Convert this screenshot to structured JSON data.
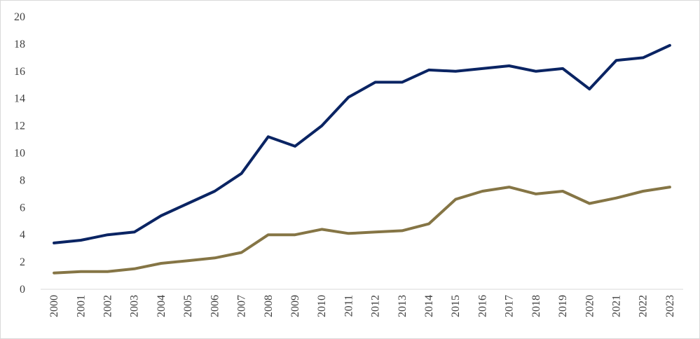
{
  "chart_data": {
    "type": "line",
    "title": "",
    "xlabel": "",
    "ylabel": "",
    "categories": [
      "2000",
      "2001",
      "2002",
      "2003",
      "2004",
      "2005",
      "2006",
      "2007",
      "2008",
      "2009",
      "2010",
      "2011",
      "2012",
      "2013",
      "2014",
      "2015",
      "2016",
      "2017",
      "2018",
      "2019",
      "2020",
      "2021",
      "2022",
      "2023"
    ],
    "ylim": [
      0,
      20
    ],
    "yticks": [
      "0",
      "2",
      "4",
      "6",
      "8",
      "10",
      "12",
      "14",
      "16",
      "18",
      "20"
    ],
    "grid": false,
    "legend": "none",
    "series": [
      {
        "color": "#0a2463",
        "values": [
          3.4,
          3.6,
          4.0,
          4.2,
          5.4,
          6.3,
          7.2,
          8.5,
          11.2,
          10.5,
          12.0,
          14.1,
          15.2,
          15.2,
          16.1,
          16.0,
          16.2,
          16.4,
          16.0,
          16.2,
          14.7,
          16.8,
          17.0,
          17.9
        ]
      },
      {
        "color": "#857545",
        "values": [
          1.2,
          1.3,
          1.3,
          1.5,
          1.9,
          2.1,
          2.3,
          2.7,
          4.0,
          4.0,
          4.4,
          4.1,
          4.2,
          4.3,
          4.8,
          6.6,
          7.2,
          7.5,
          7.0,
          7.2,
          6.3,
          6.7,
          7.2,
          7.5
        ]
      }
    ],
    "axis_color": "#d9d9d9"
  }
}
